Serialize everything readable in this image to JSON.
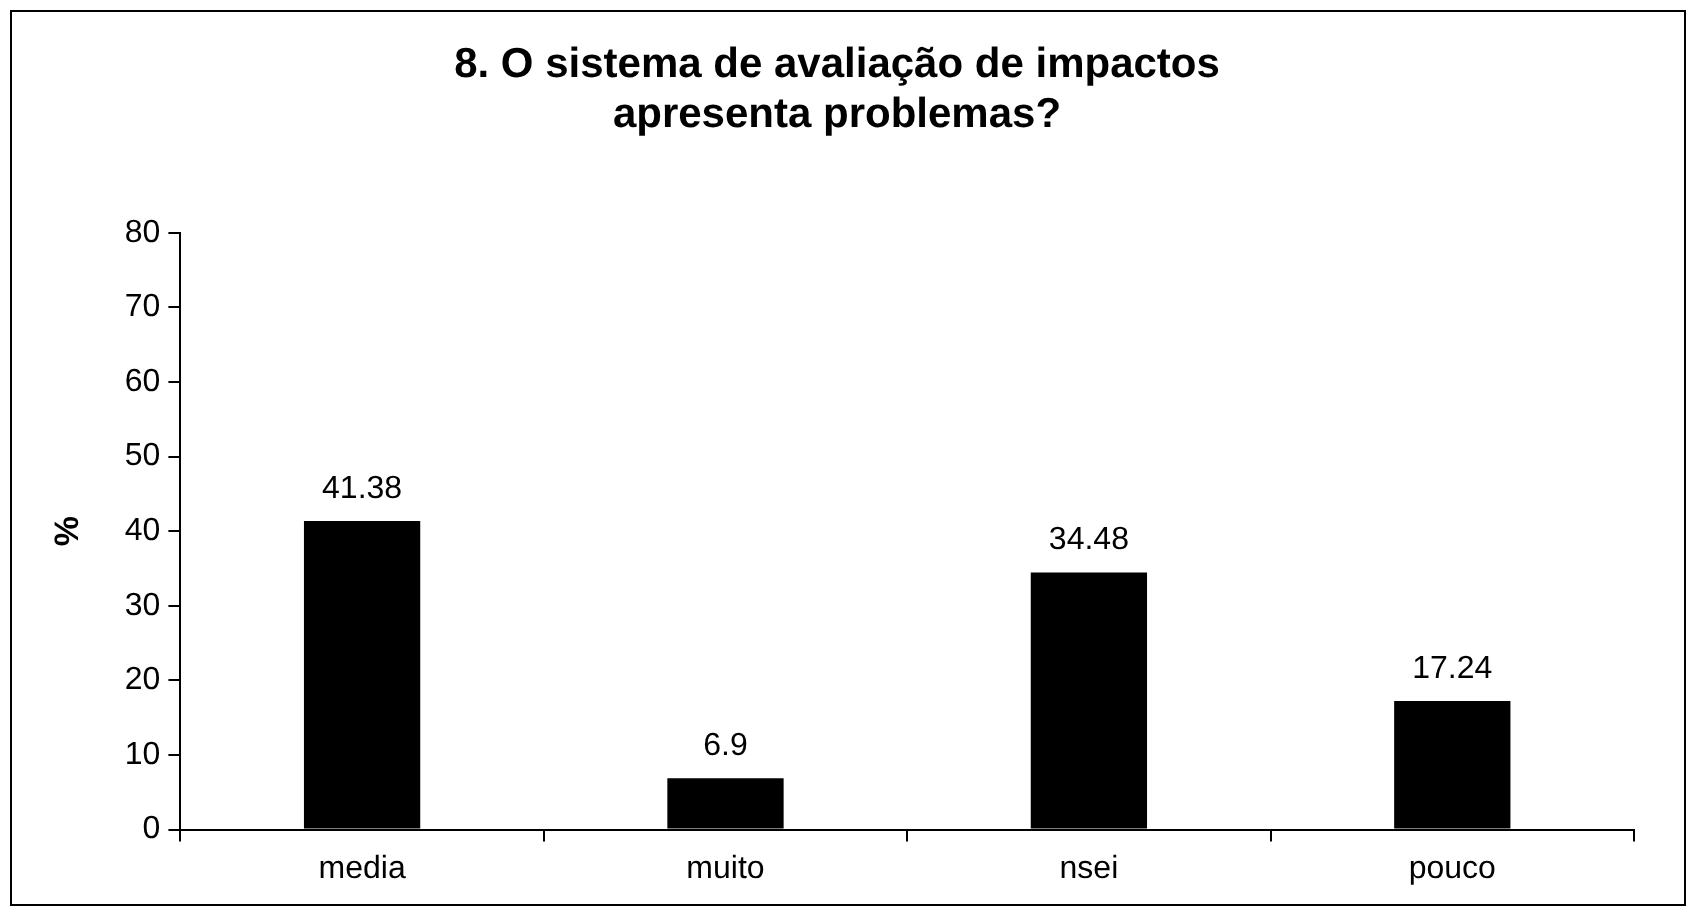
{
  "chart_data": {
    "type": "bar",
    "title": "8. O sistema de avaliação de impactos apresenta problemas?",
    "ylabel": "%",
    "categories": [
      "media",
      "muito",
      "nsei",
      "pouco"
    ],
    "values": [
      41.38,
      6.9,
      34.48,
      17.24
    ],
    "color": "#000000",
    "ylim": [
      0,
      80
    ],
    "yticks": [
      0,
      10,
      20,
      30,
      40,
      50,
      60,
      70,
      80
    ],
    "grid": false,
    "legend": false,
    "data_labels": true
  }
}
